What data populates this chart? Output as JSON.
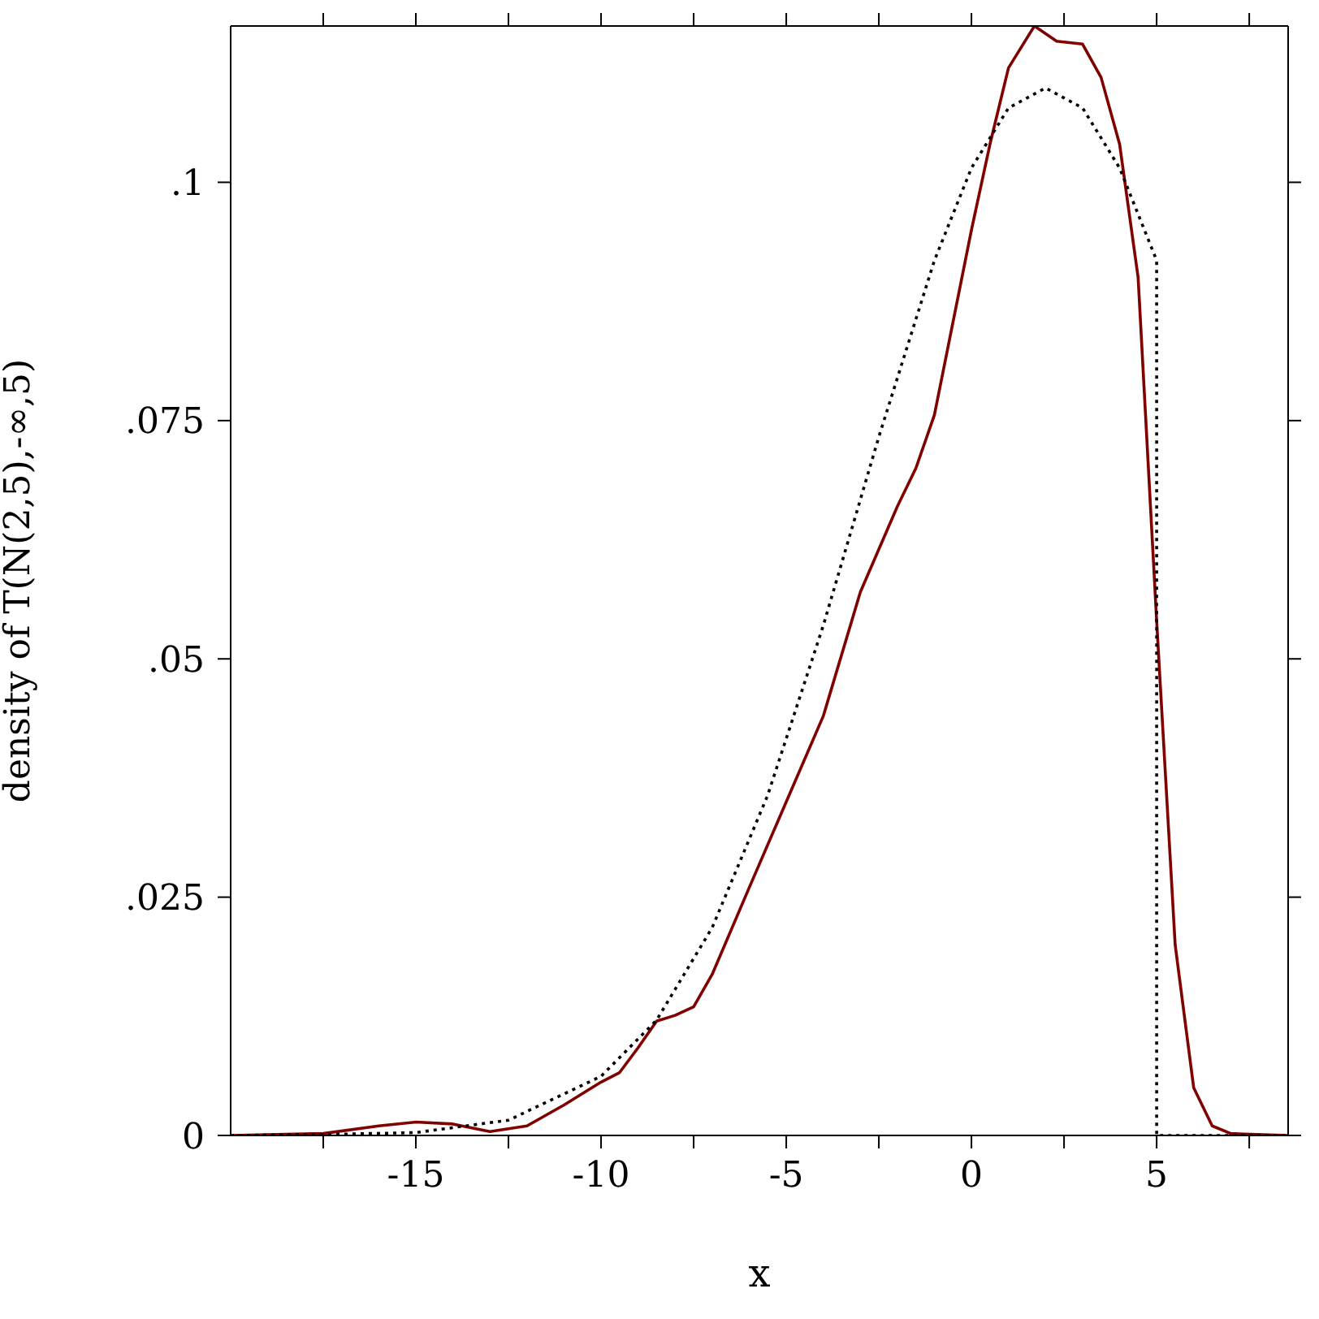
{
  "chart_data": {
    "type": "line",
    "xlabel": "x",
    "ylabel": "density of T(N(2,5),-∞,5)",
    "xlim": [
      -20,
      8.55
    ],
    "ylim": [
      0,
      0.1164
    ],
    "xticks": [
      {
        "value": -17.5,
        "label": null
      },
      -15,
      {
        "value": -12.5,
        "label": null
      },
      -10,
      {
        "value": -7.5,
        "label": null
      },
      -5,
      {
        "value": -2.5,
        "label": null
      },
      0,
      {
        "value": 2.5,
        "label": null
      },
      5,
      {
        "value": 7.5,
        "label": null
      }
    ],
    "yticks": [
      0,
      {
        "value": 0.025,
        "label": ".025"
      },
      {
        "value": 0.05,
        "label": ".05"
      },
      {
        "value": 0.075,
        "label": ".075"
      },
      {
        "value": 0.1,
        "label": ".1"
      }
    ],
    "grid": false,
    "legend": false,
    "marker": "none",
    "series": [
      {
        "color": "#800000",
        "line_style": "solid",
        "x": [
          -20,
          -17.5,
          -16,
          -15,
          -14,
          -13,
          -12,
          -11,
          -10,
          -9.5,
          -9,
          -8.5,
          -8,
          -7.5,
          -7,
          -6,
          -5,
          -4,
          -3,
          -2,
          -1.5,
          -1,
          0,
          0.5,
          1,
          1.7,
          2.3,
          3,
          3.5,
          4,
          4.5,
          5,
          5.5,
          6,
          6.5,
          7,
          8.55
        ],
        "values": [
          0,
          0.0002,
          0.001,
          0.0014,
          0.0012,
          0.0004,
          0.001,
          0.0032,
          0.0056,
          0.0066,
          0.0092,
          0.012,
          0.0126,
          0.0135,
          0.0169,
          0.026,
          0.035,
          0.044,
          0.057,
          0.066,
          0.07,
          0.0756,
          0.095,
          0.104,
          0.112,
          0.1164,
          0.1148,
          0.1145,
          0.111,
          0.104,
          0.09,
          0.054,
          0.02,
          0.005,
          0.001,
          0.0002,
          0
        ]
      },
      {
        "color": "#000000",
        "line_style": "dotted",
        "x": [
          -20,
          -17.5,
          -15,
          -12.5,
          -10,
          -8.5,
          -7,
          -5.5,
          -4,
          -2.5,
          -1,
          0,
          1,
          2,
          3,
          4,
          5,
          5,
          8.55
        ],
        "values": [
          0,
          0.0001,
          0.0003,
          0.0016,
          0.0062,
          0.0121,
          0.0218,
          0.0357,
          0.0535,
          0.0733,
          0.0918,
          0.1015,
          0.1078,
          0.1099,
          0.1078,
          0.1015,
          0.0918,
          0,
          0
        ]
      }
    ]
  }
}
